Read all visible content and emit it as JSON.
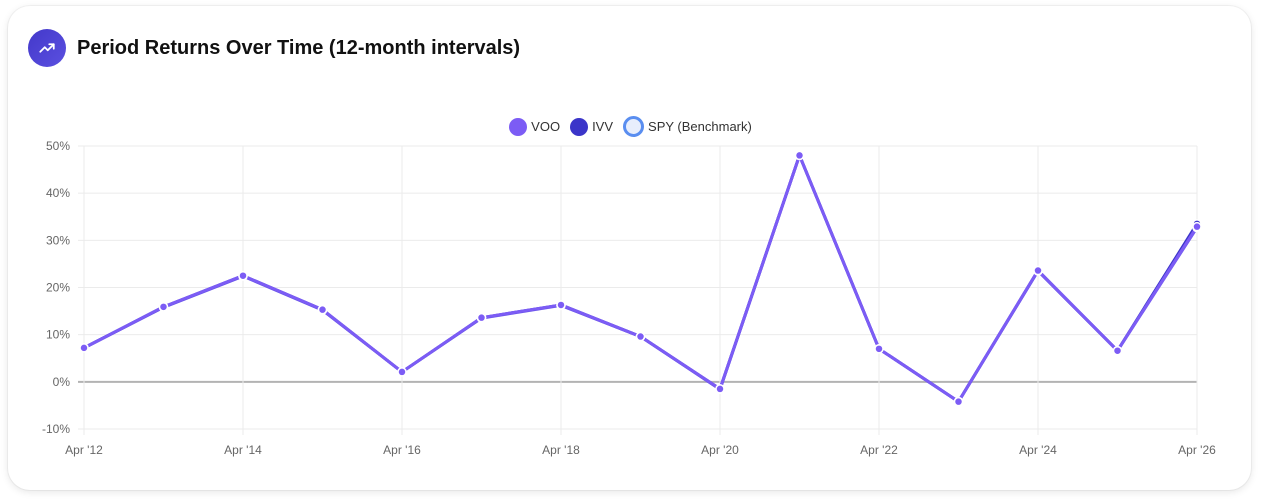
{
  "header": {
    "title": "Period Returns Over Time (12-month intervals)",
    "icon": "trending-up-icon"
  },
  "legend": [
    {
      "label": "VOO",
      "color": "#7c5cf5",
      "style": "filled"
    },
    {
      "label": "IVV",
      "color": "#3b35c9",
      "style": "filled"
    },
    {
      "label": "SPY (Benchmark)",
      "color": "#5a8ef0",
      "style": "ring"
    }
  ],
  "y_ticks": [
    "50%",
    "40%",
    "30%",
    "20%",
    "10%",
    "0%",
    "-10%"
  ],
  "x_ticks": [
    "Apr '12",
    "Apr '14",
    "Apr '16",
    "Apr '18",
    "Apr '20",
    "Apr '22",
    "Apr '24",
    "Apr '26"
  ],
  "chart_data": {
    "type": "line",
    "title": "Period Returns Over Time (12-month intervals)",
    "xlabel": "",
    "ylabel": "",
    "ylim": [
      -10,
      50
    ],
    "grid": true,
    "legend_position": "top",
    "x": [
      "Apr '12",
      "Apr '13",
      "Apr '14",
      "Apr '15",
      "Apr '16",
      "Apr '17",
      "Apr '18",
      "Apr '19",
      "Apr '20",
      "Apr '21",
      "Apr '22",
      "Apr '23",
      "Apr '24",
      "Apr '25",
      "Apr '26"
    ],
    "series": [
      {
        "name": "VOO",
        "color": "#7c5cf5",
        "values": [
          7.2,
          15.9,
          22.5,
          15.3,
          2.1,
          13.6,
          16.3,
          9.6,
          -1.5,
          48.0,
          7.0,
          -4.2,
          23.6,
          6.6,
          32.9
        ]
      },
      {
        "name": "IVV",
        "color": "#3b35c9",
        "values": [
          7.2,
          15.9,
          22.5,
          15.3,
          2.1,
          13.6,
          16.3,
          9.6,
          -1.5,
          48.0,
          7.0,
          -4.2,
          23.6,
          6.6,
          33.5
        ]
      },
      {
        "name": "SPY (Benchmark)",
        "color": "#5a8ef0",
        "values": [
          7.2,
          15.8,
          22.4,
          15.2,
          2.1,
          13.5,
          16.2,
          9.6,
          -1.6,
          48.0,
          7.0,
          -4.2,
          23.5,
          6.6,
          32.7
        ]
      }
    ]
  }
}
